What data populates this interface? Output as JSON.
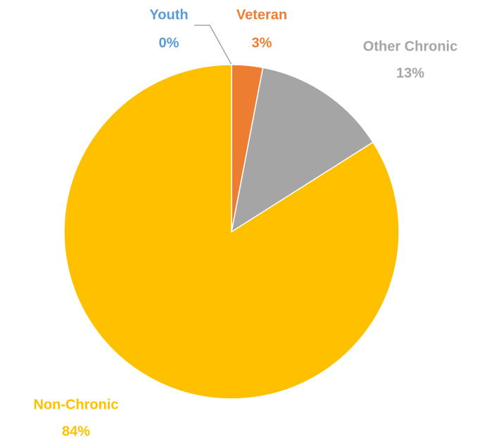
{
  "chart_data": {
    "type": "pie",
    "categories": [
      "Youth",
      "Veteran",
      "Other Chronic",
      "Non-Chronic"
    ],
    "values": [
      0,
      3,
      13,
      84
    ],
    "value_labels": [
      "0%",
      "3%",
      "13%",
      "84%"
    ],
    "colors": [
      "#5b9bd5",
      "#ed7d31",
      "#a5a5a5",
      "#ffc000"
    ]
  }
}
